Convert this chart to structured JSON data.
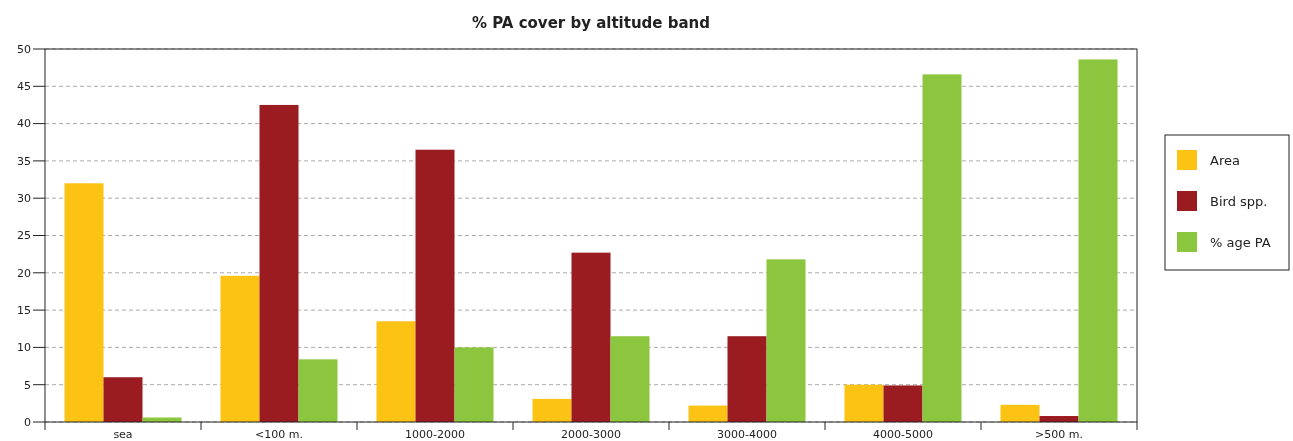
{
  "chart_data": {
    "type": "bar",
    "title": "% PA cover by altitude band",
    "categories": [
      "sea",
      "<100 m.",
      "1000-2000",
      "2000-3000",
      "3000-4000",
      "4000-5000",
      ">500 m."
    ],
    "series": [
      {
        "name": "Area",
        "color": "#fcc314",
        "values": [
          32.0,
          19.6,
          13.5,
          3.1,
          2.2,
          5.0,
          2.3
        ]
      },
      {
        "name": "Bird spp.",
        "color": "#9a1b20",
        "values": [
          6.0,
          42.5,
          36.5,
          22.7,
          11.5,
          4.9,
          0.8
        ]
      },
      {
        "name": "% age PA",
        "color": "#8cc63f",
        "values": [
          0.6,
          8.4,
          10.0,
          11.5,
          21.8,
          46.6,
          48.6
        ]
      }
    ],
    "ylim": [
      0,
      50
    ],
    "yticks": [
      0,
      5,
      10,
      15,
      20,
      25,
      30,
      35,
      40,
      45,
      50
    ],
    "grid": "y",
    "legend": "right"
  }
}
